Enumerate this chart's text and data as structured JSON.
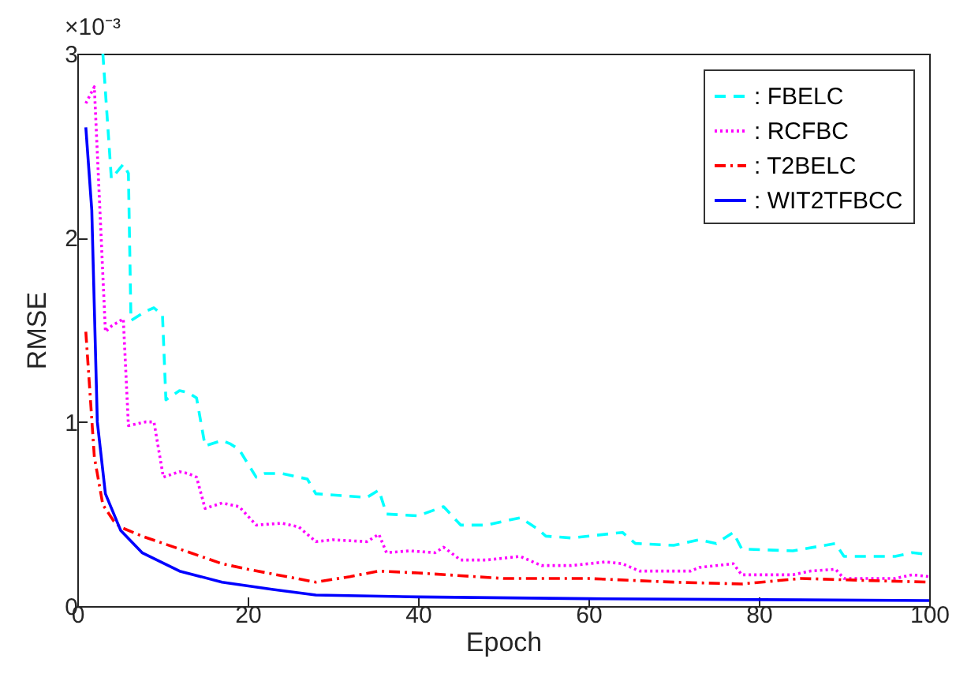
{
  "chart_data": {
    "type": "line",
    "xlabel": "Epoch",
    "ylabel": "RMSE",
    "annotations": [
      "×10⁻³"
    ],
    "xlim": [
      0,
      100
    ],
    "xticks": [
      0,
      20,
      40,
      60,
      80,
      100
    ],
    "ylim": [
      0,
      3
    ],
    "yticks": [
      0,
      1,
      2,
      3
    ],
    "grid": false,
    "legend": "top right",
    "series": [
      {
        "name": ": FBELC",
        "color": "#00ffff",
        "line_style": "dashed",
        "x": [
          3,
          4,
          5.4,
          6,
          6.3,
          8,
          9,
          10,
          10.4,
          12,
          13,
          14,
          15,
          17,
          18,
          19,
          21,
          22,
          24,
          26,
          27,
          28,
          31,
          34,
          35.4,
          36.3,
          40,
          43,
          45,
          48,
          52,
          54,
          55,
          58,
          64,
          65.5,
          70,
          73,
          75,
          77,
          78,
          84,
          89,
          90,
          96,
          98,
          100
        ],
        "values": [
          3,
          2.32,
          2.4,
          2.35,
          1.55,
          1.6,
          1.62,
          1.58,
          1.12,
          1.17,
          1.16,
          1.13,
          0.87,
          0.9,
          0.88,
          0.85,
          0.7,
          0.72,
          0.72,
          0.7,
          0.69,
          0.61,
          0.6,
          0.59,
          0.63,
          0.5,
          0.49,
          0.54,
          0.44,
          0.44,
          0.48,
          0.42,
          0.38,
          0.37,
          0.4,
          0.34,
          0.33,
          0.36,
          0.34,
          0.4,
          0.31,
          0.3,
          0.34,
          0.27,
          0.27,
          0.29,
          0.28
        ]
      },
      {
        "name": ": RCFBC",
        "color": "#ff00ff",
        "line_style": "dotted",
        "x": [
          1,
          2,
          3.3,
          4,
          5.4,
          6,
          8,
          9,
          10.1,
          12,
          13,
          14,
          15,
          17,
          18,
          19,
          21,
          24,
          26,
          28,
          30,
          34,
          35.4,
          36.3,
          39,
          42,
          43,
          45,
          48,
          52,
          54.5,
          58,
          62,
          64,
          66,
          72,
          73,
          77,
          78,
          84,
          86,
          89,
          90,
          96,
          98,
          100
        ],
        "values": [
          2.73,
          2.82,
          1.49,
          1.52,
          1.56,
          0.98,
          1.0,
          1.0,
          0.7,
          0.73,
          0.72,
          0.7,
          0.53,
          0.56,
          0.55,
          0.54,
          0.44,
          0.45,
          0.43,
          0.35,
          0.36,
          0.35,
          0.39,
          0.29,
          0.3,
          0.29,
          0.32,
          0.25,
          0.25,
          0.27,
          0.22,
          0.22,
          0.24,
          0.23,
          0.19,
          0.19,
          0.21,
          0.23,
          0.17,
          0.17,
          0.19,
          0.2,
          0.15,
          0.15,
          0.17,
          0.16
        ]
      },
      {
        "name": ": T2BELC",
        "color": "#ff0000",
        "line_style": "dashdot",
        "x": [
          1,
          2,
          3,
          4.3,
          5,
          7.6,
          12,
          17,
          20,
          28,
          32,
          35.4,
          40,
          50,
          60,
          70,
          78,
          85,
          92,
          100
        ],
        "values": [
          1.49,
          0.81,
          0.55,
          0.46,
          0.43,
          0.38,
          0.31,
          0.23,
          0.2,
          0.13,
          0.16,
          0.19,
          0.18,
          0.15,
          0.15,
          0.13,
          0.12,
          0.15,
          0.14,
          0.13
        ]
      },
      {
        "name": ": WIT2TFBCC",
        "color": "#0000ff",
        "line_style": "solid",
        "x": [
          1,
          1.7,
          2.35,
          3.3,
          5.1,
          7.6,
          12,
          17,
          23,
          28,
          40,
          60,
          100
        ],
        "values": [
          2.6,
          2.15,
          1.0,
          0.61,
          0.41,
          0.29,
          0.19,
          0.13,
          0.09,
          0.06,
          0.05,
          0.04,
          0.03
        ]
      }
    ]
  }
}
